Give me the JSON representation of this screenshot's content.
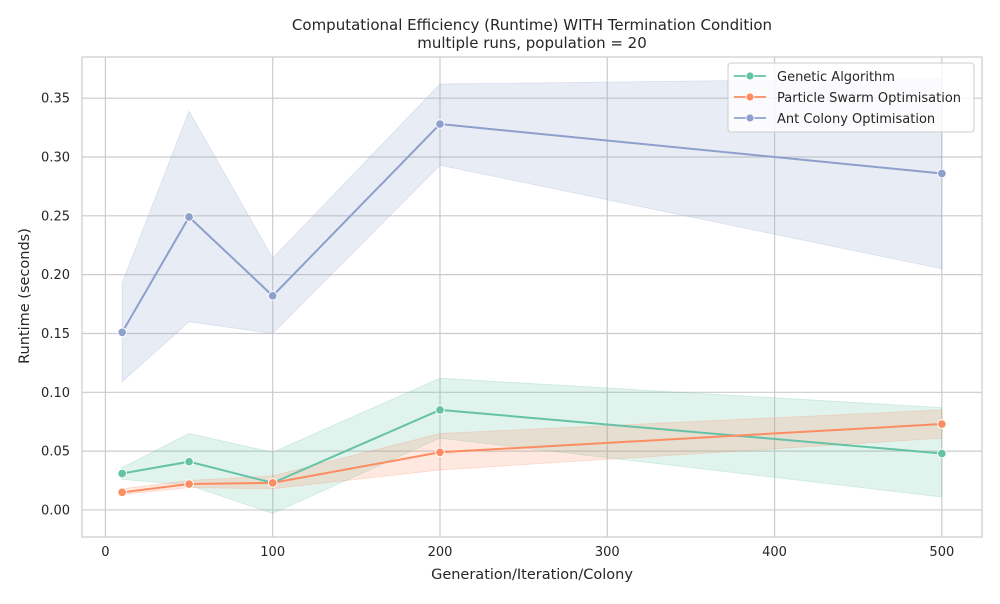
{
  "chart_data": {
    "type": "line",
    "title": "Computational Efficiency (Runtime) WITH Termination Condition",
    "subtitle": "multiple runs, population = 20",
    "xlabel": "Generation/Iteration/Colony",
    "ylabel": "Runtime (seconds)",
    "xlim": [
      -14,
      524
    ],
    "ylim": [
      -0.023,
      0.385
    ],
    "xticks": [
      0,
      100,
      200,
      300,
      400,
      500
    ],
    "yticks": [
      0.0,
      0.05,
      0.1,
      0.15,
      0.2,
      0.25,
      0.3,
      0.35
    ],
    "xtick_labels": [
      "0",
      "100",
      "200",
      "300",
      "400",
      "500"
    ],
    "ytick_labels": [
      "0.00",
      "0.05",
      "0.10",
      "0.15",
      "0.20",
      "0.25",
      "0.30",
      "0.35"
    ],
    "grid": true,
    "legend_position": "top-right",
    "x": [
      10,
      50,
      100,
      200,
      500
    ],
    "series": [
      {
        "name": "Genetic Algorithm",
        "color": "#66c2a5",
        "values": [
          0.031,
          0.041,
          0.023,
          0.085,
          0.048
        ],
        "ci_lower": [
          0.026,
          0.021,
          -0.003,
          0.061,
          0.011
        ],
        "ci_upper": [
          0.036,
          0.065,
          0.049,
          0.112,
          0.087
        ]
      },
      {
        "name": "Particle Swarm Optimisation",
        "color": "#fc8d62",
        "values": [
          0.015,
          0.022,
          0.023,
          0.049,
          0.073
        ],
        "ci_lower": [
          0.013,
          0.019,
          0.018,
          0.034,
          0.061
        ],
        "ci_upper": [
          0.018,
          0.025,
          0.029,
          0.065,
          0.085
        ]
      },
      {
        "name": "Ant Colony Optimisation",
        "color": "#8da0cb",
        "values": [
          0.151,
          0.249,
          0.182,
          0.328,
          0.286
        ],
        "ci_lower": [
          0.109,
          0.16,
          0.15,
          0.293,
          0.205
        ],
        "ci_upper": [
          0.193,
          0.339,
          0.214,
          0.362,
          0.367
        ]
      }
    ]
  }
}
